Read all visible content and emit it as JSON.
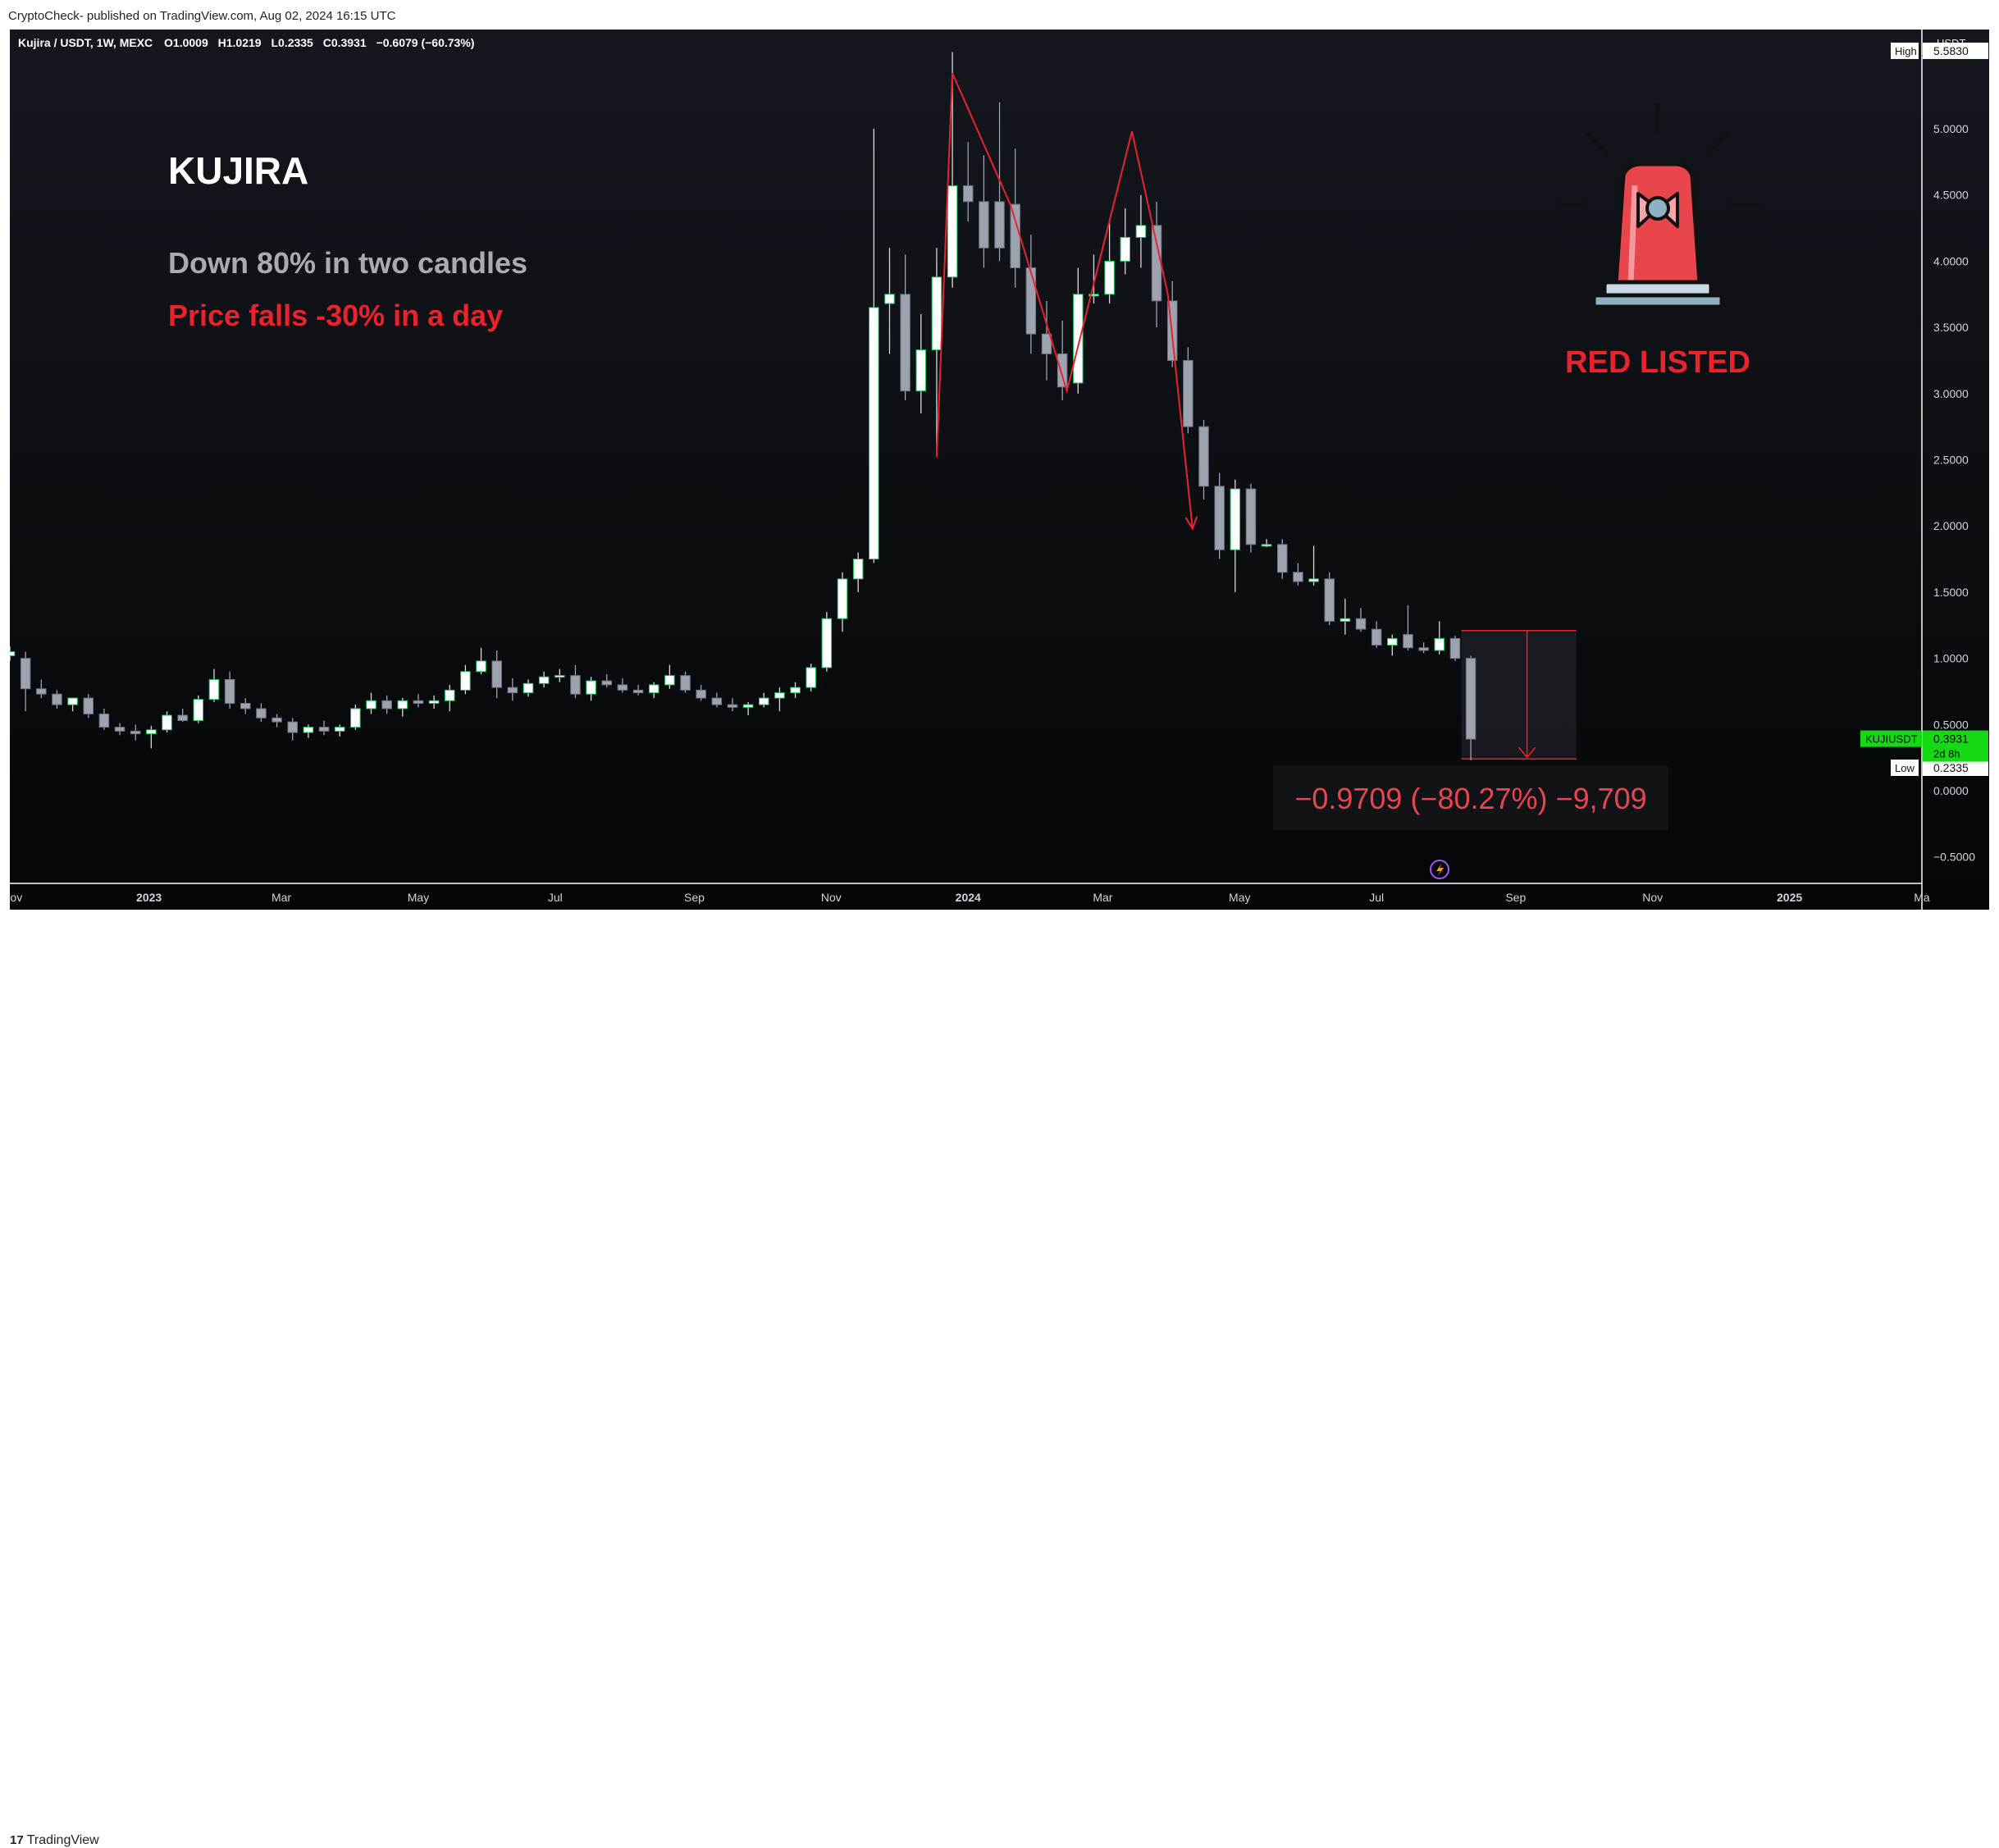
{
  "header": {
    "publisher": "CryptoCheck- published on TradingView.com, Aug 02, 2024 16:15 UTC"
  },
  "footer": {
    "brand": "TradingView"
  },
  "legend": {
    "symbol_line": "Kujira / USDT, 1W, MEXC",
    "open": "O1.0009",
    "high": "H1.0219",
    "low": "L0.2335",
    "close": "C0.3931",
    "change": "−0.6079 (−60.73%)"
  },
  "annotations": {
    "title": "KUJIRA",
    "line1": "Down 80% in two candles",
    "line2": "Price falls -30% in a day",
    "badge": "RED LISTED",
    "measure": "−0.9709 (−80.27%) −9,709"
  },
  "price_axis": {
    "currency": "USDT",
    "high_label": "High",
    "high_value": "5.5830",
    "low_label": "Low",
    "low_value": "0.2335",
    "symbol_tag": "KUJIUSDT",
    "last_price": "0.3931",
    "countdown": "2d 8h"
  },
  "colors": {
    "background": "#0d0f14",
    "up_candle": "#ffffff",
    "up_border": "#22c55e",
    "down_candle": "#9ca3af",
    "accent_red": "#e8232c",
    "subtitle_gray": "#a9abb0",
    "last_price_green": "#16d916"
  },
  "icons": {
    "siren": "siren-alarm-icon",
    "lightning": "lightning-icon"
  },
  "chart_data": {
    "type": "candlestick",
    "timeframe": "1W",
    "ylim": [
      -0.7,
      5.75
    ],
    "yticks": [
      5.0,
      4.5,
      4.0,
      3.5,
      3.0,
      2.5,
      2.0,
      1.5,
      1.0,
      0.5,
      0.0,
      -0.5
    ],
    "ytick_labels": [
      "5.0000",
      "4.5000",
      "4.0000",
      "3.5000",
      "3.0000",
      "2.5000",
      "2.0000",
      "1.5000",
      "1.0000",
      "0.5000",
      "0.0000",
      "−0.5000"
    ],
    "x_start": "2022-10-31",
    "x_end": "2025-03-01",
    "xticks": [
      {
        "date": "2022-11-01",
        "label": "Nov"
      },
      {
        "date": "2023-01-01",
        "label": "2023"
      },
      {
        "date": "2023-03-01",
        "label": "Mar"
      },
      {
        "date": "2023-05-01",
        "label": "May"
      },
      {
        "date": "2023-07-01",
        "label": "Jul"
      },
      {
        "date": "2023-09-01",
        "label": "Sep"
      },
      {
        "date": "2023-11-01",
        "label": "Nov"
      },
      {
        "date": "2024-01-01",
        "label": "2024"
      },
      {
        "date": "2024-03-01",
        "label": "Mar"
      },
      {
        "date": "2024-05-01",
        "label": "May"
      },
      {
        "date": "2024-07-01",
        "label": "Jul"
      },
      {
        "date": "2024-09-01",
        "label": "Sep"
      },
      {
        "date": "2024-11-01",
        "label": "Nov"
      },
      {
        "date": "2025-01-01",
        "label": "2025"
      },
      {
        "date": "2025-03-01",
        "label": "Ma"
      }
    ],
    "candles": [
      {
        "t": "2022-10-31",
        "o": 1.02,
        "h": 1.09,
        "l": 0.98,
        "c": 1.05
      },
      {
        "t": "2022-11-07",
        "o": 1.0,
        "h": 1.05,
        "l": 0.6,
        "c": 0.77
      },
      {
        "t": "2022-11-14",
        "o": 0.77,
        "h": 0.84,
        "l": 0.7,
        "c": 0.73
      },
      {
        "t": "2022-11-21",
        "o": 0.73,
        "h": 0.76,
        "l": 0.62,
        "c": 0.65
      },
      {
        "t": "2022-11-28",
        "o": 0.65,
        "h": 0.7,
        "l": 0.6,
        "c": 0.7
      },
      {
        "t": "2022-12-05",
        "o": 0.7,
        "h": 0.73,
        "l": 0.55,
        "c": 0.58
      },
      {
        "t": "2022-12-12",
        "o": 0.58,
        "h": 0.62,
        "l": 0.46,
        "c": 0.48
      },
      {
        "t": "2022-12-19",
        "o": 0.48,
        "h": 0.51,
        "l": 0.42,
        "c": 0.45
      },
      {
        "t": "2022-12-26",
        "o": 0.45,
        "h": 0.5,
        "l": 0.38,
        "c": 0.43
      },
      {
        "t": "2023-01-02",
        "o": 0.43,
        "h": 0.49,
        "l": 0.32,
        "c": 0.46
      },
      {
        "t": "2023-01-09",
        "o": 0.46,
        "h": 0.6,
        "l": 0.44,
        "c": 0.57
      },
      {
        "t": "2023-01-16",
        "o": 0.57,
        "h": 0.62,
        "l": 0.52,
        "c": 0.53
      },
      {
        "t": "2023-01-23",
        "o": 0.53,
        "h": 0.72,
        "l": 0.51,
        "c": 0.69
      },
      {
        "t": "2023-01-30",
        "o": 0.69,
        "h": 0.92,
        "l": 0.67,
        "c": 0.84
      },
      {
        "t": "2023-02-06",
        "o": 0.84,
        "h": 0.9,
        "l": 0.62,
        "c": 0.66
      },
      {
        "t": "2023-02-13",
        "o": 0.66,
        "h": 0.7,
        "l": 0.58,
        "c": 0.62
      },
      {
        "t": "2023-02-20",
        "o": 0.62,
        "h": 0.66,
        "l": 0.52,
        "c": 0.55
      },
      {
        "t": "2023-02-27",
        "o": 0.55,
        "h": 0.58,
        "l": 0.48,
        "c": 0.52
      },
      {
        "t": "2023-03-06",
        "o": 0.52,
        "h": 0.55,
        "l": 0.38,
        "c": 0.44
      },
      {
        "t": "2023-03-13",
        "o": 0.44,
        "h": 0.5,
        "l": 0.4,
        "c": 0.48
      },
      {
        "t": "2023-03-20",
        "o": 0.48,
        "h": 0.53,
        "l": 0.42,
        "c": 0.45
      },
      {
        "t": "2023-03-27",
        "o": 0.45,
        "h": 0.5,
        "l": 0.41,
        "c": 0.48
      },
      {
        "t": "2023-04-03",
        "o": 0.48,
        "h": 0.65,
        "l": 0.46,
        "c": 0.62
      },
      {
        "t": "2023-04-10",
        "o": 0.62,
        "h": 0.74,
        "l": 0.58,
        "c": 0.68
      },
      {
        "t": "2023-04-17",
        "o": 0.68,
        "h": 0.72,
        "l": 0.58,
        "c": 0.62
      },
      {
        "t": "2023-04-24",
        "o": 0.62,
        "h": 0.7,
        "l": 0.56,
        "c": 0.68
      },
      {
        "t": "2023-05-01",
        "o": 0.68,
        "h": 0.73,
        "l": 0.63,
        "c": 0.66
      },
      {
        "t": "2023-05-08",
        "o": 0.66,
        "h": 0.72,
        "l": 0.62,
        "c": 0.68
      },
      {
        "t": "2023-05-15",
        "o": 0.68,
        "h": 0.8,
        "l": 0.6,
        "c": 0.76
      },
      {
        "t": "2023-05-22",
        "o": 0.76,
        "h": 0.95,
        "l": 0.73,
        "c": 0.9
      },
      {
        "t": "2023-05-29",
        "o": 0.9,
        "h": 1.08,
        "l": 0.88,
        "c": 0.98
      },
      {
        "t": "2023-06-05",
        "o": 0.98,
        "h": 1.06,
        "l": 0.7,
        "c": 0.78
      },
      {
        "t": "2023-06-12",
        "o": 0.78,
        "h": 0.85,
        "l": 0.68,
        "c": 0.74
      },
      {
        "t": "2023-06-19",
        "o": 0.74,
        "h": 0.84,
        "l": 0.71,
        "c": 0.81
      },
      {
        "t": "2023-06-26",
        "o": 0.81,
        "h": 0.9,
        "l": 0.78,
        "c": 0.86
      },
      {
        "t": "2023-07-03",
        "o": 0.86,
        "h": 0.92,
        "l": 0.82,
        "c": 0.87
      },
      {
        "t": "2023-07-10",
        "o": 0.87,
        "h": 0.95,
        "l": 0.7,
        "c": 0.73
      },
      {
        "t": "2023-07-17",
        "o": 0.73,
        "h": 0.86,
        "l": 0.68,
        "c": 0.83
      },
      {
        "t": "2023-07-24",
        "o": 0.83,
        "h": 0.88,
        "l": 0.78,
        "c": 0.8
      },
      {
        "t": "2023-07-31",
        "o": 0.8,
        "h": 0.85,
        "l": 0.74,
        "c": 0.76
      },
      {
        "t": "2023-08-07",
        "o": 0.76,
        "h": 0.8,
        "l": 0.72,
        "c": 0.74
      },
      {
        "t": "2023-08-14",
        "o": 0.74,
        "h": 0.82,
        "l": 0.7,
        "c": 0.8
      },
      {
        "t": "2023-08-21",
        "o": 0.8,
        "h": 0.95,
        "l": 0.77,
        "c": 0.87
      },
      {
        "t": "2023-08-28",
        "o": 0.87,
        "h": 0.9,
        "l": 0.74,
        "c": 0.76
      },
      {
        "t": "2023-09-04",
        "o": 0.76,
        "h": 0.8,
        "l": 0.68,
        "c": 0.7
      },
      {
        "t": "2023-09-11",
        "o": 0.7,
        "h": 0.74,
        "l": 0.63,
        "c": 0.65
      },
      {
        "t": "2023-09-18",
        "o": 0.65,
        "h": 0.7,
        "l": 0.6,
        "c": 0.63
      },
      {
        "t": "2023-09-25",
        "o": 0.63,
        "h": 0.67,
        "l": 0.57,
        "c": 0.65
      },
      {
        "t": "2023-10-02",
        "o": 0.65,
        "h": 0.74,
        "l": 0.63,
        "c": 0.7
      },
      {
        "t": "2023-10-09",
        "o": 0.7,
        "h": 0.78,
        "l": 0.6,
        "c": 0.74
      },
      {
        "t": "2023-10-16",
        "o": 0.74,
        "h": 0.82,
        "l": 0.7,
        "c": 0.78
      },
      {
        "t": "2023-10-23",
        "o": 0.78,
        "h": 0.96,
        "l": 0.75,
        "c": 0.93
      },
      {
        "t": "2023-10-30",
        "o": 0.93,
        "h": 1.35,
        "l": 0.9,
        "c": 1.3
      },
      {
        "t": "2023-11-06",
        "o": 1.3,
        "h": 1.65,
        "l": 1.2,
        "c": 1.6
      },
      {
        "t": "2023-11-13",
        "o": 1.6,
        "h": 1.8,
        "l": 1.5,
        "c": 1.75
      },
      {
        "t": "2023-11-20",
        "o": 1.75,
        "h": 5.0,
        "l": 1.72,
        "c": 3.65
      },
      {
        "t": "2023-11-27",
        "o": 3.68,
        "h": 4.1,
        "l": 3.3,
        "c": 3.75
      },
      {
        "t": "2023-12-04",
        "o": 3.75,
        "h": 4.05,
        "l": 2.95,
        "c": 3.02
      },
      {
        "t": "2023-12-11",
        "o": 3.02,
        "h": 3.6,
        "l": 2.85,
        "c": 3.33
      },
      {
        "t": "2023-12-18",
        "o": 3.33,
        "h": 4.1,
        "l": 2.55,
        "c": 3.88
      },
      {
        "t": "2023-12-25",
        "o": 3.88,
        "h": 5.58,
        "l": 3.8,
        "c": 4.57
      },
      {
        "t": "2024-01-01",
        "o": 4.57,
        "h": 4.9,
        "l": 4.3,
        "c": 4.45
      },
      {
        "t": "2024-01-08",
        "o": 4.45,
        "h": 4.8,
        "l": 3.95,
        "c": 4.1
      },
      {
        "t": "2024-01-15",
        "o": 4.45,
        "h": 5.2,
        "l": 4.0,
        "c": 4.1
      },
      {
        "t": "2024-01-22",
        "o": 4.43,
        "h": 4.85,
        "l": 3.8,
        "c": 3.95
      },
      {
        "t": "2024-01-29",
        "o": 3.95,
        "h": 4.2,
        "l": 3.3,
        "c": 3.45
      },
      {
        "t": "2024-02-05",
        "o": 3.45,
        "h": 3.7,
        "l": 3.1,
        "c": 3.3
      },
      {
        "t": "2024-02-12",
        "o": 3.3,
        "h": 3.55,
        "l": 2.95,
        "c": 3.05
      },
      {
        "t": "2024-02-19",
        "o": 3.08,
        "h": 3.95,
        "l": 3.0,
        "c": 3.75
      },
      {
        "t": "2024-02-26",
        "o": 3.75,
        "h": 4.05,
        "l": 3.68,
        "c": 3.75
      },
      {
        "t": "2024-03-04",
        "o": 3.75,
        "h": 4.3,
        "l": 3.68,
        "c": 4.0
      },
      {
        "t": "2024-03-11",
        "o": 4.0,
        "h": 4.4,
        "l": 3.9,
        "c": 4.18
      },
      {
        "t": "2024-03-18",
        "o": 4.18,
        "h": 4.5,
        "l": 3.95,
        "c": 4.27
      },
      {
        "t": "2024-03-25",
        "o": 4.27,
        "h": 4.45,
        "l": 3.5,
        "c": 3.7
      },
      {
        "t": "2024-04-01",
        "o": 3.7,
        "h": 3.85,
        "l": 3.2,
        "c": 3.25
      },
      {
        "t": "2024-04-08",
        "o": 3.25,
        "h": 3.35,
        "l": 2.7,
        "c": 2.75
      },
      {
        "t": "2024-04-15",
        "o": 2.75,
        "h": 2.8,
        "l": 2.2,
        "c": 2.3
      },
      {
        "t": "2024-04-22",
        "o": 2.3,
        "h": 2.4,
        "l": 1.75,
        "c": 1.82
      },
      {
        "t": "2024-04-29",
        "o": 1.82,
        "h": 2.35,
        "l": 1.5,
        "c": 2.28
      },
      {
        "t": "2024-05-06",
        "o": 2.28,
        "h": 2.32,
        "l": 1.8,
        "c": 1.86
      },
      {
        "t": "2024-05-13",
        "o": 1.86,
        "h": 1.9,
        "l": 1.84,
        "c": 1.86
      },
      {
        "t": "2024-05-20",
        "o": 1.86,
        "h": 1.9,
        "l": 1.6,
        "c": 1.65
      },
      {
        "t": "2024-05-27",
        "o": 1.65,
        "h": 1.72,
        "l": 1.55,
        "c": 1.58
      },
      {
        "t": "2024-06-03",
        "o": 1.58,
        "h": 1.85,
        "l": 1.55,
        "c": 1.6
      },
      {
        "t": "2024-06-10",
        "o": 1.6,
        "h": 1.65,
        "l": 1.25,
        "c": 1.28
      },
      {
        "t": "2024-06-17",
        "o": 1.28,
        "h": 1.45,
        "l": 1.18,
        "c": 1.3
      },
      {
        "t": "2024-06-24",
        "o": 1.3,
        "h": 1.38,
        "l": 1.2,
        "c": 1.22
      },
      {
        "t": "2024-07-01",
        "o": 1.22,
        "h": 1.28,
        "l": 1.08,
        "c": 1.1
      },
      {
        "t": "2024-07-08",
        "o": 1.1,
        "h": 1.18,
        "l": 1.02,
        "c": 1.15
      },
      {
        "t": "2024-07-15",
        "o": 1.18,
        "h": 1.4,
        "l": 1.06,
        "c": 1.08
      },
      {
        "t": "2024-07-22",
        "o": 1.08,
        "h": 1.12,
        "l": 1.04,
        "c": 1.06
      },
      {
        "t": "2024-07-29",
        "o": 1.06,
        "h": 1.28,
        "l": 1.03,
        "c": 1.15
      },
      {
        "t": "2024-08-05",
        "o": 1.15,
        "h": 1.17,
        "l": 0.98,
        "c": 1.0
      },
      {
        "t": "2024-08-12",
        "o": 1.0,
        "h": 1.02,
        "l": 0.23,
        "c": 0.39
      }
    ],
    "drawings": {
      "zigzag": [
        {
          "t": "2023-12-18",
          "p": 2.52
        },
        {
          "t": "2023-12-25",
          "p": 5.42
        },
        {
          "t": "2024-01-20",
          "p": 4.42
        },
        {
          "t": "2024-02-14",
          "p": 3.02
        },
        {
          "t": "2024-03-14",
          "p": 4.98
        },
        {
          "t": "2024-03-30",
          "p": 3.75
        },
        {
          "t": "2024-04-10",
          "p": 1.98
        }
      ],
      "measure_box": {
        "t_start": "2024-08-12",
        "t_end": "2024-09-28",
        "top": 1.21,
        "bottom": 0.24
      }
    }
  }
}
